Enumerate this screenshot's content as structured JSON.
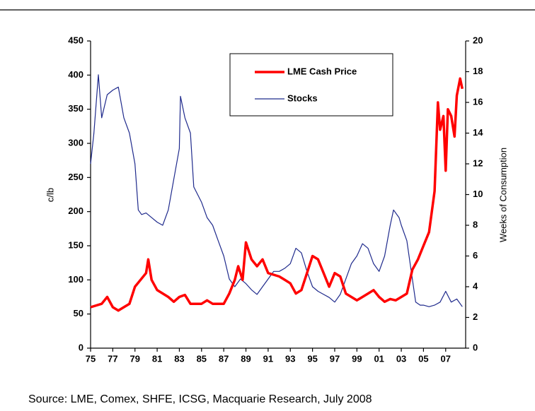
{
  "chart_data": {
    "type": "line",
    "y_label": "c/lb",
    "y2_label": "Weeks of Consumption",
    "source": "Source: LME, Comex, SHFE, ICSG, Macquarie Research, July 2008",
    "xlim": [
      1975,
      2008.8
    ],
    "xticks": [
      {
        "value": 1975,
        "label": "75"
      },
      {
        "value": 1977,
        "label": "77"
      },
      {
        "value": 1979,
        "label": "79"
      },
      {
        "value": 1981,
        "label": "81"
      },
      {
        "value": 1983,
        "label": "83"
      },
      {
        "value": 1985,
        "label": "85"
      },
      {
        "value": 1987,
        "label": "87"
      },
      {
        "value": 1989,
        "label": "89"
      },
      {
        "value": 1991,
        "label": "91"
      },
      {
        "value": 1993,
        "label": "93"
      },
      {
        "value": 1995,
        "label": "95"
      },
      {
        "value": 1997,
        "label": "97"
      },
      {
        "value": 1999,
        "label": "99"
      },
      {
        "value": 2001,
        "label": "01"
      },
      {
        "value": 2003,
        "label": "03"
      },
      {
        "value": 2005,
        "label": "05"
      },
      {
        "value": 2007,
        "label": "07"
      }
    ],
    "ylim": [
      0,
      450
    ],
    "yticks": [
      0,
      50,
      100,
      150,
      200,
      250,
      300,
      350,
      400,
      450
    ],
    "y2lim": [
      0,
      20
    ],
    "y2ticks": [
      0,
      2,
      4,
      6,
      8,
      10,
      12,
      14,
      16,
      18,
      20
    ],
    "series": [
      {
        "name": "LME Cash Price",
        "color": "#ff0000",
        "axis": "y",
        "x": [
          1975,
          1976,
          1976.5,
          1977,
          1977.5,
          1978,
          1978.5,
          1979,
          1979.5,
          1980,
          1980.2,
          1980.5,
          1981,
          1982,
          1982.5,
          1983,
          1983.5,
          1984,
          1985,
          1985.5,
          1986,
          1987,
          1987.5,
          1988,
          1988.3,
          1988.7,
          1989,
          1989.5,
          1990,
          1990.5,
          1991,
          1992,
          1992.5,
          1993,
          1993.5,
          1994,
          1994.5,
          1995,
          1995.5,
          1996,
          1996.5,
          1997,
          1997.5,
          1998,
          1998.5,
          1999,
          1999.5,
          2000,
          2000.5,
          2001,
          2001.5,
          2002,
          2002.5,
          2003,
          2003.5,
          2004,
          2004.5,
          2005,
          2005.5,
          2006,
          2006.3,
          2006.5,
          2006.8,
          2007,
          2007.2,
          2007.5,
          2007.8,
          2008,
          2008.3,
          2008.5
        ],
        "values": [
          60,
          65,
          75,
          60,
          55,
          60,
          65,
          90,
          100,
          110,
          130,
          100,
          85,
          75,
          68,
          75,
          78,
          65,
          65,
          70,
          65,
          65,
          80,
          100,
          120,
          100,
          155,
          130,
          120,
          130,
          110,
          105,
          100,
          95,
          80,
          85,
          110,
          135,
          130,
          110,
          90,
          110,
          105,
          80,
          75,
          70,
          75,
          80,
          85,
          75,
          68,
          72,
          70,
          75,
          80,
          115,
          130,
          150,
          170,
          230,
          360,
          320,
          340,
          260,
          350,
          340,
          310,
          370,
          395,
          380
        ]
      },
      {
        "name": "Stocks",
        "color": "#1f2a8c",
        "axis": "y2",
        "x": [
          1975,
          1975.3,
          1975.7,
          1976,
          1976.5,
          1977,
          1977.5,
          1978,
          1978.5,
          1979,
          1979.3,
          1979.6,
          1980,
          1980.5,
          1981,
          1981.5,
          1982,
          1982.5,
          1983,
          1983.1,
          1983.5,
          1984,
          1984.3,
          1985,
          1985.5,
          1986,
          1986.5,
          1987,
          1987.5,
          1988,
          1988.5,
          1989,
          1989.5,
          1990,
          1990.5,
          1991,
          1991.5,
          1992,
          1992.5,
          1993,
          1993.5,
          1994,
          1994.5,
          1995,
          1995.5,
          1996,
          1996.5,
          1997,
          1997.5,
          1998,
          1998.5,
          1999,
          1999.5,
          2000,
          2000.5,
          2001,
          2001.5,
          2002,
          2002.3,
          2002.8,
          2003,
          2003.5,
          2004,
          2004.3,
          2004.7,
          2005,
          2005.5,
          2006,
          2006.5,
          2007,
          2007.5,
          2008,
          2008.5
        ],
        "values": [
          12,
          14,
          17.8,
          15,
          16.5,
          16.8,
          17,
          15,
          14,
          12,
          9,
          8.7,
          8.8,
          8.5,
          8.2,
          8,
          9,
          11,
          13,
          16.4,
          15,
          14,
          10.5,
          9.5,
          8.5,
          8,
          7,
          6,
          4.5,
          4,
          4.5,
          4.2,
          3.8,
          3.5,
          4,
          4.5,
          5,
          5,
          5.2,
          5.5,
          6.5,
          6.2,
          5,
          4,
          3.7,
          3.5,
          3.3,
          3,
          3.5,
          4.5,
          5.5,
          6,
          6.8,
          6.5,
          5.5,
          5,
          6,
          8,
          9,
          8.5,
          8,
          7,
          4.5,
          3,
          2.8,
          2.8,
          2.7,
          2.8,
          3,
          3.7,
          3,
          3.2,
          2.7
        ]
      }
    ]
  }
}
